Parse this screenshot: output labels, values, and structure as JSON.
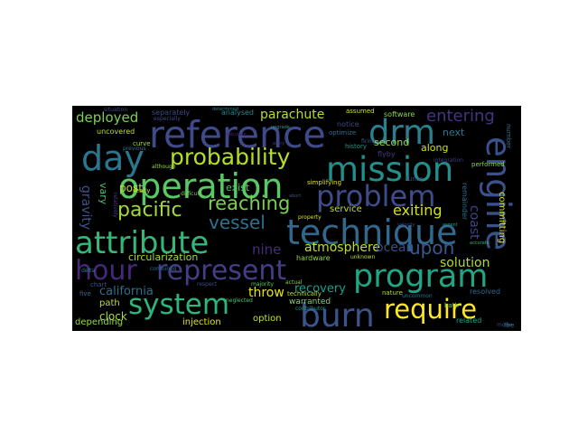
{
  "word_cloud": {
    "background": "#000000",
    "colormap": "viridis",
    "words": [
      {
        "text": "reference",
        "color": "#3f4a8a"
      },
      {
        "text": "drm",
        "color": "#2b7f8e"
      },
      {
        "text": "mission",
        "color": "#21908d"
      },
      {
        "text": "engine",
        "color": "#3b518b"
      },
      {
        "text": "day",
        "color": "#2a768e"
      },
      {
        "text": "probability",
        "color": "#b5de2b"
      },
      {
        "text": "operation",
        "color": "#5ac864"
      },
      {
        "text": "problem",
        "color": "#3e4c8a"
      },
      {
        "text": "technique",
        "color": "#31688e"
      },
      {
        "text": "reaching",
        "color": "#7ad151"
      },
      {
        "text": "pacific",
        "color": "#a2da37"
      },
      {
        "text": "vessel",
        "color": "#2c718e"
      },
      {
        "text": "exiting",
        "color": "#d0e11c"
      },
      {
        "text": "attribute",
        "color": "#35b779"
      },
      {
        "text": "upon",
        "color": "#38598c"
      },
      {
        "text": "atmosphere",
        "color": "#bddf26"
      },
      {
        "text": "hour",
        "color": "#482878"
      },
      {
        "text": "represent",
        "color": "#433e85"
      },
      {
        "text": "program",
        "color": "#21a685"
      },
      {
        "text": "system",
        "color": "#2fb47c"
      },
      {
        "text": "burn",
        "color": "#3a548c"
      },
      {
        "text": "require",
        "color": "#fde725"
      },
      {
        "text": "deployed",
        "color": "#7ad151"
      },
      {
        "text": "parachute",
        "color": "#b5de2b"
      },
      {
        "text": "entering",
        "color": "#46337e"
      },
      {
        "text": "circularization",
        "color": "#a5db36"
      },
      {
        "text": "california",
        "color": "#2e6f8e"
      },
      {
        "text": "throw",
        "color": "#e5e419"
      },
      {
        "text": "recovery",
        "color": "#1f9e89"
      },
      {
        "text": "ocean",
        "color": "#3e4a89"
      },
      {
        "text": "solution",
        "color": "#addc30"
      },
      {
        "text": "coast",
        "color": "#414487"
      },
      {
        "text": "nine",
        "color": "#472c7a"
      },
      {
        "text": "gravity",
        "color": "#3b528b"
      },
      {
        "text": "committing",
        "color": "#d8e219"
      },
      {
        "text": "clock",
        "color": "#a8db34"
      },
      {
        "text": "injection",
        "color": "#e5e419"
      },
      {
        "text": "option",
        "color": "#c8e020"
      },
      {
        "text": "depending",
        "color": "#95d840"
      },
      {
        "text": "path",
        "color": "#c2df23"
      },
      {
        "text": "post",
        "color": "#b8de29"
      },
      {
        "text": "vary",
        "color": "#4ac16d"
      },
      {
        "text": "exist",
        "color": "#56c667"
      },
      {
        "text": "service",
        "color": "#bddf26"
      },
      {
        "text": "warranted",
        "color": "#86d549"
      },
      {
        "text": "hardware",
        "color": "#8ed645"
      },
      {
        "text": "along",
        "color": "#d2e21b"
      },
      {
        "text": "second",
        "color": "#a0da39"
      },
      {
        "text": "next",
        "color": "#2a788e"
      },
      {
        "text": "uncovered",
        "color": "#c2df23"
      },
      {
        "text": "separately",
        "color": "#3e4989"
      },
      {
        "text": "analysed",
        "color": "#24878e"
      },
      {
        "text": "software",
        "color": "#8bd646"
      },
      {
        "text": "assumed",
        "color": "#cae11f"
      },
      {
        "text": "notice",
        "color": "#3f4889"
      },
      {
        "text": "optimize",
        "color": "#2e6e8e"
      },
      {
        "text": "history",
        "color": "#1f948c"
      },
      {
        "text": "flyby",
        "color": "#433d84"
      },
      {
        "text": "lunar",
        "color": "#423f85"
      },
      {
        "text": "simplifying",
        "color": "#dde318"
      },
      {
        "text": "performed",
        "color": "#84d44b"
      },
      {
        "text": "remainder",
        "color": "#2d708e"
      },
      {
        "text": "resolved",
        "color": "#31678e"
      },
      {
        "text": "related",
        "color": "#20a486"
      },
      {
        "text": "bath",
        "color": "#7fd34e"
      },
      {
        "text": "uncommon",
        "color": "#2d708e"
      },
      {
        "text": "nature",
        "color": "#addc30"
      },
      {
        "text": "contributor",
        "color": "#21918c"
      },
      {
        "text": "technically",
        "color": "#b2dd2d"
      },
      {
        "text": "actual",
        "color": "#7cd250"
      },
      {
        "text": "majority",
        "color": "#5cc863"
      },
      {
        "text": "respect",
        "color": "#3e4c8a"
      },
      {
        "text": "neglected",
        "color": "#50c46a"
      },
      {
        "text": "chart",
        "color": "#3b518b"
      },
      {
        "text": "five",
        "color": "#306a8e"
      },
      {
        "text": "curve",
        "color": "#a8db34"
      },
      {
        "text": "really",
        "color": "#c0df25"
      },
      {
        "text": "although",
        "color": "#8fd744"
      },
      {
        "text": "difficult",
        "color": "#73d056"
      },
      {
        "text": "previous",
        "color": "#2a768e"
      },
      {
        "text": "especially",
        "color": "#3d4e8a"
      },
      {
        "text": "situation",
        "color": "#3e4989"
      },
      {
        "text": "relatively",
        "color": "#433e85"
      },
      {
        "text": "unknown",
        "color": "#b5de2b"
      },
      {
        "text": "property",
        "color": "#d0e11c"
      },
      {
        "text": "firing",
        "color": "#3a548c"
      },
      {
        "text": "number",
        "color": "#2c728e"
      },
      {
        "text": "combined",
        "color": "#2e6e8e"
      },
      {
        "text": "integration",
        "color": "#433d84"
      },
      {
        "text": "determined",
        "color": "#25838e"
      },
      {
        "text": "upgrade",
        "color": "#1f9f88"
      },
      {
        "text": "accurate",
        "color": "#35b779"
      },
      {
        "text": "delta",
        "color": "#287c8e"
      },
      {
        "text": "velocity",
        "color": "#3f4889"
      },
      {
        "text": "mode",
        "color": "#3e4a89"
      },
      {
        "text": "fire",
        "color": "#2b758e"
      },
      {
        "text": "calculate",
        "color": "#482475"
      },
      {
        "text": "entry",
        "color": "#443a83"
      },
      {
        "text": "abort",
        "color": "#3b528b"
      },
      {
        "text": "ascent",
        "color": "#22a785"
      }
    ]
  }
}
